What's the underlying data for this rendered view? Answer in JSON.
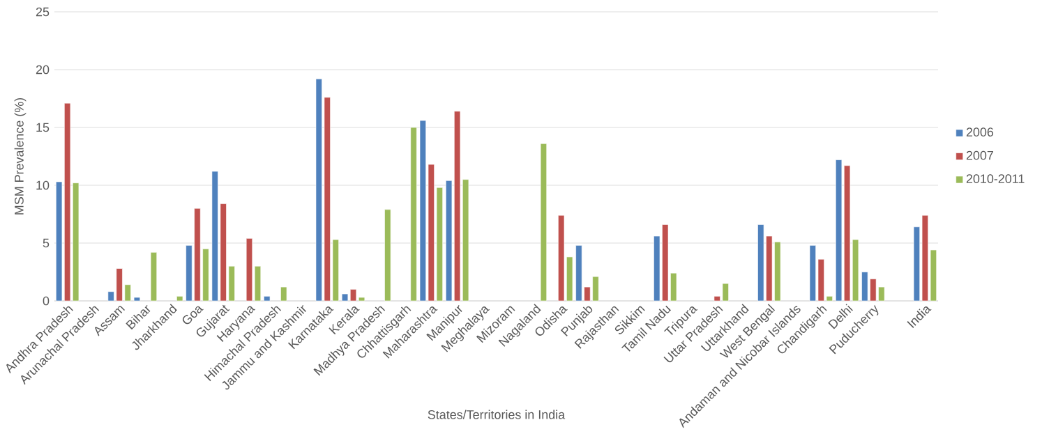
{
  "chart_data": {
    "type": "bar",
    "xlabel": "States/Territories in India",
    "ylabel": "MSM Prevalence (%)",
    "categories": [
      "Andhra Pradesh",
      "Arunachal Pradesh",
      "Assam",
      "Bihar",
      "Jharkhand",
      "Goa",
      "Gujarat",
      "Haryana",
      "Himachal Pradesh",
      "Jammu and Kashmir",
      "Karnataka",
      "Kerala",
      "Madhya Pradesh",
      "Chhattisgarh",
      "Maharashtra",
      "Manipur",
      "Meghalaya",
      "Mizoram",
      "Nagaland",
      "Odisha",
      "Punjab",
      "Rajasthan",
      "Sikkim",
      "Tamil Nadu",
      "Tripura",
      "Uttar Pradesh",
      "Uttarkhand",
      "West Bengal",
      "Andaman and Nicobar Islands",
      "Chandigarh",
      "Delhi",
      "Puducherry",
      null,
      "India"
    ],
    "series": [
      {
        "name": "2006",
        "color": "#4f81bd",
        "values": [
          10.3,
          null,
          0.8,
          0.3,
          null,
          4.8,
          11.2,
          null,
          0.4,
          null,
          19.2,
          0.6,
          null,
          null,
          15.6,
          10.4,
          null,
          null,
          null,
          null,
          4.8,
          null,
          null,
          5.6,
          null,
          null,
          null,
          6.6,
          null,
          4.8,
          12.2,
          2.5,
          null,
          6.4
        ]
      },
      {
        "name": "2007",
        "color": "#c0504d",
        "values": [
          17.1,
          null,
          2.8,
          null,
          null,
          8.0,
          8.4,
          5.4,
          null,
          null,
          17.6,
          1.0,
          null,
          null,
          11.8,
          16.4,
          null,
          null,
          null,
          7.4,
          1.2,
          null,
          null,
          6.6,
          null,
          0.4,
          null,
          5.6,
          null,
          3.6,
          11.7,
          1.9,
          null,
          7.4
        ]
      },
      {
        "name": "2010-2011",
        "color": "#9bbb59",
        "values": [
          10.2,
          null,
          1.4,
          4.2,
          0.4,
          4.5,
          3.0,
          3.0,
          1.2,
          null,
          5.3,
          0.3,
          7.9,
          15.0,
          9.8,
          10.5,
          null,
          null,
          13.6,
          3.8,
          2.1,
          null,
          null,
          2.4,
          null,
          1.5,
          null,
          5.1,
          null,
          0.4,
          5.3,
          1.2,
          null,
          4.4
        ]
      }
    ],
    "ylim": [
      0,
      25
    ],
    "yticks": [
      0,
      5,
      10,
      15,
      20,
      25
    ],
    "grid": "y",
    "legend": "right"
  }
}
